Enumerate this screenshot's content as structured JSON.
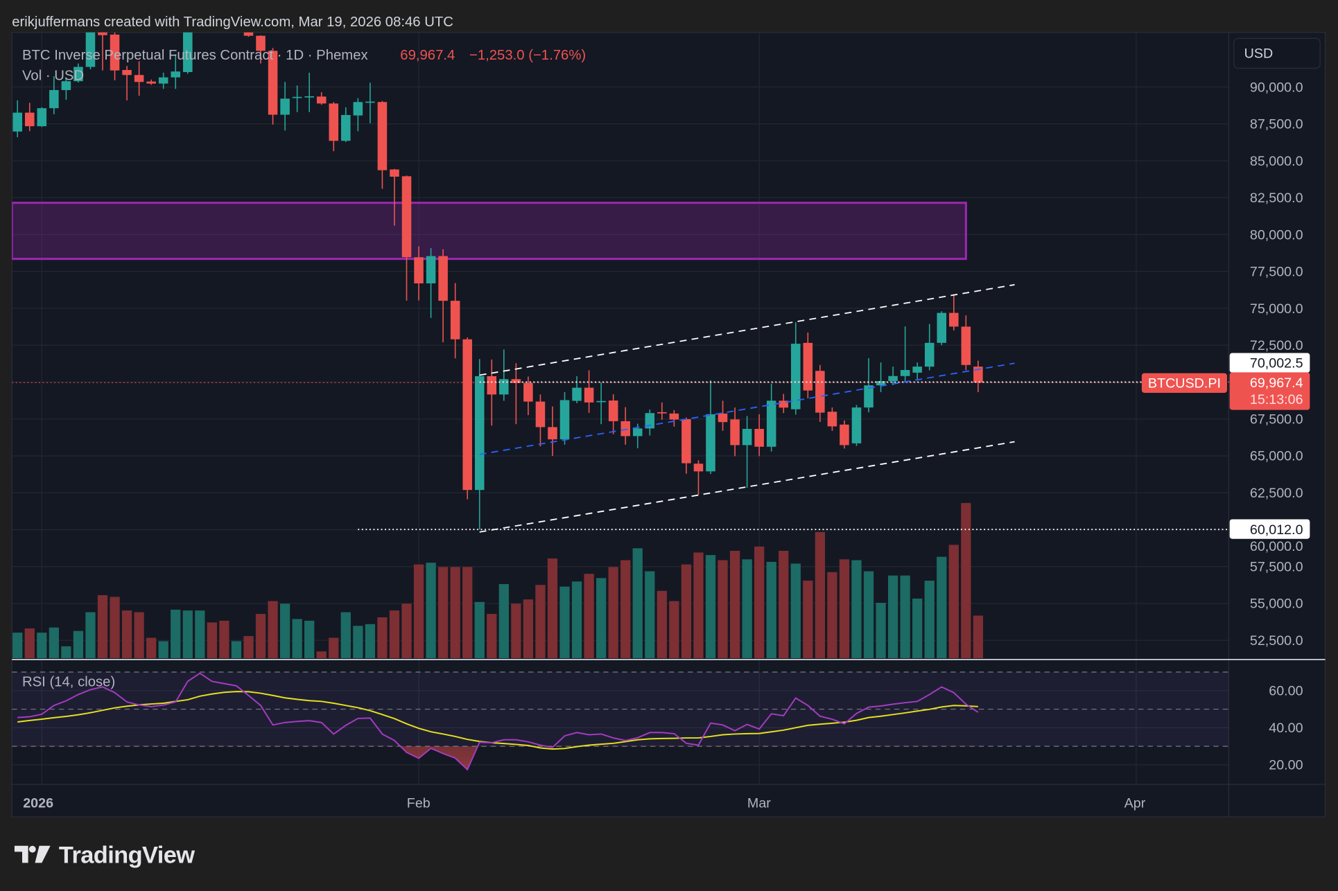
{
  "header": {
    "attribution": "erikjuffermans created with TradingView.com, Mar 19, 2026 08:46 UTC",
    "symbol_line": "BTC Inverse Perpetual Futures Contract · 1D · Phemex",
    "last_price": "69,967.4",
    "change": "−1,253.0 (−1.76%)",
    "volume_legend": "Vol · USD"
  },
  "currency_button": "USD",
  "rsi_legend": "RSI (14, close)",
  "logo_text": "TradingView",
  "colors": {
    "up": "#26a69a",
    "down": "#ef5350",
    "vol_up": "#1c6b64",
    "vol_down": "#7d2f33",
    "zone": "#9c27b0",
    "rsi": "#a43cc0",
    "rsi_ma": "#e5e11f",
    "channel": "#ffffff",
    "mid_channel": "#2962ff",
    "background": "#141823",
    "page": "#1f1f1f"
  },
  "chart_data": {
    "type": "candlestick",
    "timeframe": "1D",
    "y_ticks": [
      "52,500.0",
      "55,000.0",
      "57,500.0",
      "60,000.0",
      "62,500.0",
      "65,000.0",
      "67,500.0",
      "72,500.0",
      "75,000.0",
      "77,500.0",
      "80,000.0",
      "82,500.0",
      "85,000.0",
      "87,500.0",
      "90,000.0"
    ],
    "x_ticks": [
      {
        "label": "2026",
        "date": "2026-01-01",
        "bold": true
      },
      {
        "label": "Feb",
        "date": "2026-02-01"
      },
      {
        "label": "Mar",
        "date": "2026-03-01"
      },
      {
        "label": "Apr",
        "date": "2026-04-01"
      }
    ],
    "candles_columns": [
      "date",
      "open",
      "high",
      "low",
      "close",
      "volume_relative"
    ],
    "candles": [
      [
        "2025-12-30",
        86980,
        89090,
        86590,
        88260,
        30
      ],
      [
        "2025-12-31",
        88260,
        88930,
        87010,
        87340,
        35
      ],
      [
        "2026-01-01",
        87340,
        88620,
        87290,
        88560,
        30
      ],
      [
        "2026-01-02",
        88560,
        90730,
        88150,
        89790,
        36
      ],
      [
        "2026-01-03",
        89790,
        90540,
        89130,
        90390,
        14
      ],
      [
        "2026-01-04",
        90390,
        91590,
        90300,
        91360,
        32
      ],
      [
        "2026-01-05",
        91360,
        94800,
        91200,
        94600,
        54
      ],
      [
        "2026-01-06",
        94600,
        94900,
        91120,
        93510,
        74
      ],
      [
        "2026-01-07",
        93550,
        93700,
        90450,
        91120,
        72
      ],
      [
        "2026-01-08",
        91150,
        91430,
        89090,
        90810,
        56
      ],
      [
        "2026-01-09",
        90810,
        91740,
        89400,
        90340,
        54
      ],
      [
        "2026-01-10",
        90370,
        90500,
        90150,
        90230,
        24
      ],
      [
        "2026-01-11",
        90230,
        90970,
        89870,
        90650,
        20
      ],
      [
        "2026-01-12",
        90650,
        92220,
        89870,
        91050,
        57
      ],
      [
        "2026-01-13",
        91010,
        96000,
        90900,
        95500,
        56
      ],
      [
        "2026-01-14",
        95500,
        97500,
        95100,
        96800,
        56
      ],
      [
        "2026-01-15",
        96800,
        97200,
        95000,
        95600,
        42
      ],
      [
        "2026-01-16",
        95600,
        96000,
        94700,
        95300,
        44
      ],
      [
        "2026-01-17",
        95300,
        95900,
        94900,
        95500,
        20
      ],
      [
        "2026-01-18",
        95500,
        95600,
        93400,
        93470,
        26
      ],
      [
        "2026-01-19",
        93470,
        93500,
        91590,
        92450,
        52
      ],
      [
        "2026-01-20",
        92450,
        92640,
        87450,
        88120,
        67
      ],
      [
        "2026-01-21",
        88120,
        90340,
        87050,
        89210,
        64
      ],
      [
        "2026-01-22",
        89300,
        90100,
        88300,
        89330,
        46
      ],
      [
        "2026-01-23",
        89350,
        90970,
        88300,
        89370,
        44
      ],
      [
        "2026-01-24",
        89350,
        89640,
        88800,
        88880,
        8
      ],
      [
        "2026-01-25",
        88880,
        88980,
        85650,
        86350,
        24
      ],
      [
        "2026-01-26",
        86350,
        88620,
        86270,
        88100,
        54
      ],
      [
        "2026-01-27",
        88070,
        89240,
        87000,
        88980,
        38
      ],
      [
        "2026-01-28",
        88980,
        90290,
        87540,
        89010,
        40
      ],
      [
        "2026-01-29",
        88980,
        89050,
        83100,
        84360,
        48
      ],
      [
        "2026-01-30",
        84410,
        84450,
        80600,
        83920,
        56
      ],
      [
        "2026-01-31",
        83950,
        84000,
        75520,
        78460,
        64
      ],
      [
        "2026-02-01",
        78460,
        79200,
        75530,
        76690,
        110
      ],
      [
        "2026-02-02",
        76690,
        79080,
        74350,
        78540,
        112
      ],
      [
        "2026-02-03",
        78540,
        79000,
        72700,
        75510,
        107
      ],
      [
        "2026-02-04",
        75510,
        76710,
        71610,
        72900,
        107
      ],
      [
        "2026-02-05",
        72900,
        73030,
        62060,
        62690,
        107
      ],
      [
        "2026-02-06",
        62690,
        71560,
        60012,
        70400,
        66
      ],
      [
        "2026-02-07",
        70400,
        71530,
        67050,
        69160,
        52
      ],
      [
        "2026-02-08",
        69160,
        72210,
        68730,
        70200,
        87
      ],
      [
        "2026-02-09",
        70200,
        71280,
        67150,
        69940,
        64
      ],
      [
        "2026-02-10",
        69940,
        70380,
        67760,
        68680,
        69
      ],
      [
        "2026-02-11",
        68680,
        69160,
        65640,
        66950,
        86
      ],
      [
        "2026-02-12",
        66950,
        68350,
        64990,
        66120,
        117
      ],
      [
        "2026-02-13",
        66120,
        69320,
        65760,
        68780,
        84
      ],
      [
        "2026-02-14",
        68730,
        70400,
        68570,
        69620,
        90
      ],
      [
        "2026-02-15",
        69620,
        70800,
        67920,
        68620,
        99
      ],
      [
        "2026-02-16",
        68700,
        69970,
        67150,
        68720,
        94
      ],
      [
        "2026-02-17",
        68750,
        69180,
        66470,
        67350,
        107
      ],
      [
        "2026-02-18",
        67350,
        68300,
        65760,
        66340,
        115
      ],
      [
        "2026-02-19",
        66340,
        67180,
        65520,
        66860,
        129
      ],
      [
        "2026-02-20",
        66860,
        68140,
        66380,
        67900,
        102
      ],
      [
        "2026-02-21",
        67960,
        68620,
        67450,
        67900,
        79
      ],
      [
        "2026-02-22",
        67870,
        68100,
        66980,
        67460,
        67
      ],
      [
        "2026-02-23",
        67490,
        67600,
        63790,
        64500,
        110
      ],
      [
        "2026-02-24",
        64470,
        64700,
        62380,
        63950,
        124
      ],
      [
        "2026-02-25",
        63950,
        70120,
        63770,
        67820,
        121
      ],
      [
        "2026-02-26",
        67870,
        68740,
        66700,
        67290,
        115
      ],
      [
        "2026-02-27",
        67470,
        68280,
        64980,
        65730,
        126
      ],
      [
        "2026-02-28",
        65730,
        67700,
        62840,
        66830,
        116
      ],
      [
        "2026-03-01",
        66830,
        67820,
        64980,
        65620,
        131
      ],
      [
        "2026-03-02",
        65620,
        69900,
        65300,
        68740,
        113
      ],
      [
        "2026-03-03",
        68740,
        69200,
        67900,
        68270,
        126
      ],
      [
        "2026-03-04",
        68160,
        74050,
        67800,
        72600,
        111
      ],
      [
        "2026-03-05",
        72660,
        73360,
        68900,
        69430,
        91
      ],
      [
        "2026-03-06",
        70760,
        71160,
        67300,
        67930,
        148
      ],
      [
        "2026-03-07",
        67990,
        68280,
        66700,
        67000,
        101
      ],
      [
        "2026-03-08",
        67120,
        67400,
        65500,
        65730,
        116
      ],
      [
        "2026-03-09",
        65850,
        68450,
        65670,
        68280,
        115
      ],
      [
        "2026-03-10",
        68280,
        71620,
        67950,
        69780,
        102
      ],
      [
        "2026-03-11",
        69780,
        71330,
        69320,
        70070,
        65
      ],
      [
        "2026-03-12",
        70070,
        71050,
        69800,
        70410,
        97
      ],
      [
        "2026-03-13",
        70410,
        73770,
        70000,
        70820,
        97
      ],
      [
        "2026-03-14",
        70640,
        71330,
        70200,
        71050,
        70
      ],
      [
        "2026-03-15",
        71050,
        73940,
        70800,
        72660,
        91
      ],
      [
        "2026-03-16",
        72660,
        74800,
        72500,
        74690,
        119
      ],
      [
        "2026-03-17",
        74690,
        75960,
        73500,
        73760,
        133
      ],
      [
        "2026-03-18",
        73760,
        74520,
        70800,
        71160,
        182
      ],
      [
        "2026-03-19",
        71050,
        71450,
        69320,
        69967.4,
        50
      ]
    ],
    "rsi": {
      "label": "RSI (14, close)",
      "upper_band": 70,
      "middle_band": 50,
      "lower_band": 30,
      "y_ticks": [
        "20.00",
        "40.00",
        "60.00"
      ],
      "values": [
        45.5,
        45.9,
        47.3,
        52.0,
        54.5,
        57.9,
        60.5,
        62.0,
        58.9,
        53.9,
        52.3,
        51.4,
        52.2,
        53.9,
        65.0,
        69.4,
        65.0,
        63.8,
        62.6,
        57.4,
        52.0,
        41.5,
        42.8,
        43.4,
        43.8,
        42.8,
        36.6,
        41.3,
        45.0,
        45.2,
        36.6,
        33.1,
        26.7,
        23.5,
        28.9,
        26.1,
        23.6,
        17.4,
        32.2,
        31.9,
        33.5,
        33.5,
        32.4,
        30.6,
        29.4,
        35.6,
        37.4,
        36.2,
        36.6,
        34.5,
        33.1,
        34.6,
        37.4,
        37.4,
        36.8,
        31.6,
        30.6,
        42.5,
        41.5,
        38.4,
        41.8,
        39.3,
        47.5,
        46.5,
        56.0,
        52.0,
        46.2,
        44.6,
        42.1,
        47.7,
        51.1,
        51.7,
        52.7,
        53.5,
        54.2,
        57.9,
        62.0,
        58.9,
        52.7,
        48.3
      ],
      "ma_values": [
        43.1,
        43.9,
        44.6,
        45.4,
        46.1,
        47.0,
        48.1,
        49.4,
        50.7,
        51.6,
        52.3,
        52.8,
        53.2,
        54.2,
        55.1,
        57.0,
        58.2,
        59.1,
        59.5,
        59.4,
        58.6,
        57.4,
        56.1,
        55.3,
        54.6,
        54.2,
        53.2,
        52.0,
        50.8,
        49.2,
        47.1,
        44.9,
        42.1,
        39.7,
        37.8,
        36.6,
        35.3,
        33.7,
        32.6,
        31.9,
        31.5,
        31.0,
        30.4,
        29.1,
        28.5,
        28.8,
        29.8,
        30.6,
        31.1,
        31.6,
        32.5,
        33.5,
        34.0,
        34.2,
        34.3,
        34.5,
        34.5,
        35.3,
        36.2,
        36.6,
        36.8,
        36.9,
        37.8,
        38.7,
        40.0,
        41.3,
        41.9,
        42.4,
        43.0,
        44.0,
        45.5,
        46.2,
        47.1,
        48.0,
        49.0,
        49.9,
        51.2,
        52.0,
        51.8,
        51.4
      ]
    },
    "drawings": {
      "zone": {
        "top": 82150,
        "bottom": 78350,
        "end_date": "2026-03-18"
      },
      "channel_upper": {
        "start": [
          "2026-02-06",
          70470
        ],
        "end": [
          "2026-03-22",
          76600
        ]
      },
      "channel_lower": {
        "start": [
          "2026-02-06",
          59840
        ],
        "end": [
          "2026-03-22",
          65960
        ]
      },
      "channel_mid": {
        "start": [
          "2026-02-06",
          65100
        ],
        "end": [
          "2026-03-22",
          71280
        ]
      },
      "level_high": {
        "price": 70002.5,
        "start_date": "2026-02-06",
        "label": "70,002.5"
      },
      "level_low": {
        "price": 60012.0,
        "start_date": "2026-01-27",
        "label": "60,012.0"
      }
    },
    "last_price": {
      "value": 69967.4,
      "label": "69,967.4",
      "countdown": "15:13:06",
      "symbol_tag": "BTCUSD.PI"
    }
  }
}
